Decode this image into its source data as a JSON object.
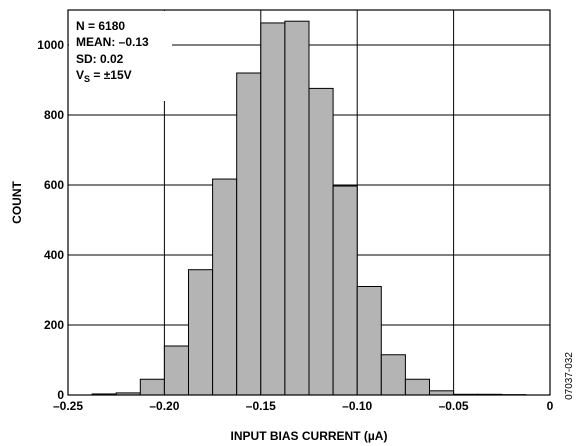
{
  "chart_data": {
    "type": "bar",
    "xlabel": "INPUT BIAS CURRENT (µA)",
    "ylabel": "COUNT",
    "xlim": [
      -0.25,
      0
    ],
    "ylim": [
      0,
      1100
    ],
    "x_ticks": [
      -0.25,
      -0.2,
      -0.15,
      -0.1,
      -0.05,
      0
    ],
    "x_tick_labels": [
      "–0.25",
      "–0.20",
      "–0.15",
      "–0.10",
      "–0.05",
      "0"
    ],
    "y_ticks": [
      0,
      200,
      400,
      600,
      800,
      1000
    ],
    "y_tick_labels": [
      "0",
      "200",
      "400",
      "600",
      "800",
      "1000"
    ],
    "grid": true,
    "bin_width": 0.0125,
    "bins": [
      {
        "x0": -0.2375,
        "x1": -0.225,
        "count": 3
      },
      {
        "x0": -0.225,
        "x1": -0.2125,
        "count": 6
      },
      {
        "x0": -0.2125,
        "x1": -0.2,
        "count": 45
      },
      {
        "x0": -0.2,
        "x1": -0.1875,
        "count": 140
      },
      {
        "x0": -0.1875,
        "x1": -0.175,
        "count": 358
      },
      {
        "x0": -0.175,
        "x1": -0.1625,
        "count": 617
      },
      {
        "x0": -0.1625,
        "x1": -0.15,
        "count": 920
      },
      {
        "x0": -0.15,
        "x1": -0.1375,
        "count": 1063
      },
      {
        "x0": -0.1375,
        "x1": -0.125,
        "count": 1068
      },
      {
        "x0": -0.125,
        "x1": -0.1125,
        "count": 876
      },
      {
        "x0": -0.1125,
        "x1": -0.1,
        "count": 597
      },
      {
        "x0": -0.1,
        "x1": -0.0875,
        "count": 310
      },
      {
        "x0": -0.0875,
        "x1": -0.075,
        "count": 115
      },
      {
        "x0": -0.075,
        "x1": -0.0625,
        "count": 45
      },
      {
        "x0": -0.0625,
        "x1": -0.05,
        "count": 12
      },
      {
        "x0": -0.05,
        "x1": -0.0375,
        "count": 2
      },
      {
        "x0": -0.0375,
        "x1": -0.025,
        "count": 2
      },
      {
        "x0": -0.025,
        "x1": -0.0125,
        "count": 1
      }
    ],
    "annotation": {
      "n_line": "N = 6180",
      "mean_line": "MEAN: –0.13",
      "sd_line": "SD: 0.02",
      "vs_prefix": "V",
      "vs_sub": "S",
      "vs_suffix": " = ±15V"
    },
    "figure_id": "07037-032",
    "colors": {
      "bar_fill": "#b4b4b4",
      "bar_stroke": "#000000",
      "grid": "#000000"
    }
  }
}
